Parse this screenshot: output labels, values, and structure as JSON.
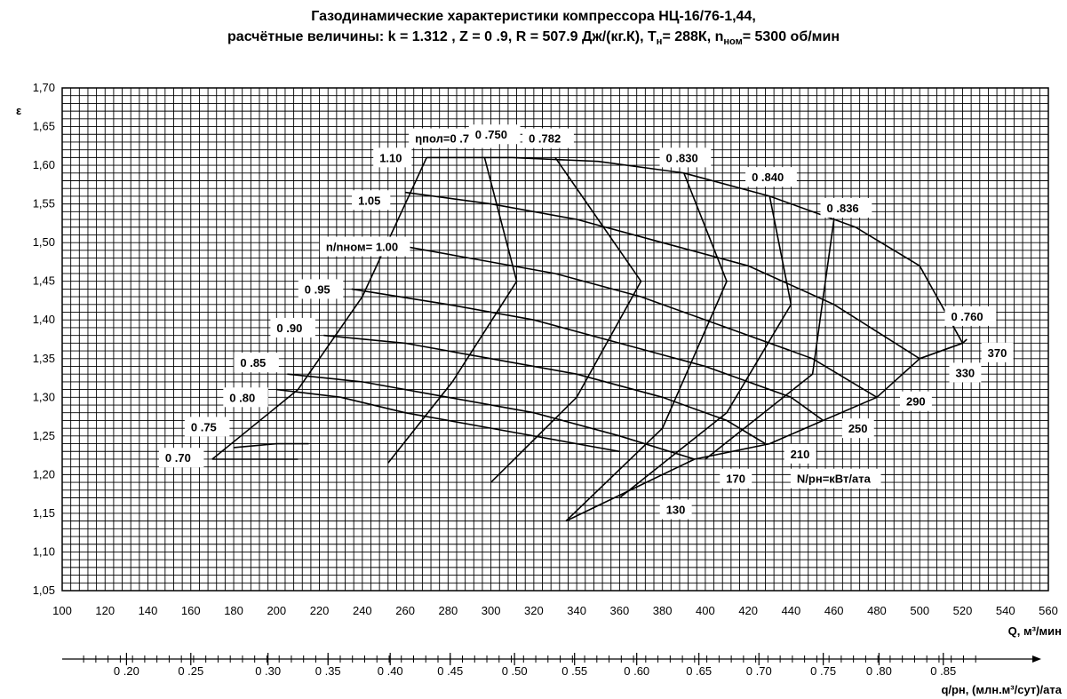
{
  "title": {
    "line1": "Газодинамические характеристики компрессора НЦ-16/76-1,44,",
    "line2_a": "расчётные величины: k = 1.312 , Z = 0 .9, R = 507.9 Дж/(кг.К), T",
    "line2_sub1": "н",
    "line2_b": "= 288К, n",
    "line2_sub2": "ном",
    "line2_c": "= 5300 об/мин"
  },
  "chart_data": {
    "type": "line",
    "xlabel": "Q, м³/мин",
    "ylabel": "ε",
    "xlabel2": "q/pн, (млн.м³/сут)/ата",
    "xlim": [
      100,
      560
    ],
    "ylim": [
      1.05,
      1.7
    ],
    "x_ticks": [
      "100",
      "120",
      "140",
      "160",
      "180",
      "200",
      "220",
      "240",
      "260",
      "280",
      "300",
      "320",
      "340",
      "360",
      "380",
      "400",
      "420",
      "440",
      "460",
      "480",
      "500",
      "520",
      "540",
      "560"
    ],
    "y_ticks": [
      "1,05",
      "1,10",
      "1,15",
      "1,20",
      "1,25",
      "1,30",
      "1,35",
      "1,40",
      "1,45",
      "1,50",
      "1,55",
      "1,60",
      "1,65",
      "1,70"
    ],
    "x2_ticks": [
      {
        "label": "0 .20",
        "x": 130
      },
      {
        "label": "0 .25",
        "x": 160
      },
      {
        "label": "0 .30",
        "x": 196
      },
      {
        "label": "0 .35",
        "x": 224
      },
      {
        "label": "0 .40",
        "x": 253
      },
      {
        "label": "0 .45",
        "x": 281
      },
      {
        "label": "0 .50",
        "x": 311
      },
      {
        "label": "0 .55",
        "x": 339
      },
      {
        "label": "0 .60",
        "x": 368
      },
      {
        "label": "0 .65",
        "x": 397
      },
      {
        "label": "0 .70",
        "x": 425
      },
      {
        "label": "0 .75",
        "x": 455
      },
      {
        "label": "0 .80",
        "x": 481
      },
      {
        "label": "0 .85",
        "x": 511
      }
    ],
    "grid": true,
    "speed_lines": [
      {
        "label": "0 .70",
        "points": [
          [
            170,
            1.22
          ],
          [
            190,
            1.22
          ],
          [
            210,
            1.22
          ]
        ]
      },
      {
        "label": "0 .75",
        "points": [
          [
            180,
            1.235
          ],
          [
            200,
            1.24
          ],
          [
            215,
            1.24
          ]
        ]
      },
      {
        "label": "0 .80",
        "points": [
          [
            200,
            1.31
          ],
          [
            230,
            1.3
          ],
          [
            260,
            1.28
          ],
          [
            300,
            1.26
          ],
          [
            340,
            1.24
          ],
          [
            360,
            1.23
          ]
        ]
      },
      {
        "label": "0 .85",
        "points": [
          [
            205,
            1.33
          ],
          [
            240,
            1.32
          ],
          [
            280,
            1.3
          ],
          [
            320,
            1.28
          ],
          [
            360,
            1.25
          ],
          [
            395,
            1.22
          ]
        ]
      },
      {
        "label": "0 .90",
        "points": [
          [
            222,
            1.38
          ],
          [
            260,
            1.37
          ],
          [
            300,
            1.35
          ],
          [
            340,
            1.33
          ],
          [
            380,
            1.3
          ],
          [
            410,
            1.27
          ],
          [
            428,
            1.24
          ]
        ]
      },
      {
        "label": "0 .95",
        "points": [
          [
            235,
            1.44
          ],
          [
            280,
            1.42
          ],
          [
            320,
            1.4
          ],
          [
            360,
            1.37
          ],
          [
            400,
            1.34
          ],
          [
            440,
            1.3
          ],
          [
            455,
            1.27
          ]
        ]
      },
      {
        "label": "n/nном= 1.00",
        "points": [
          [
            250,
            1.5
          ],
          [
            290,
            1.48
          ],
          [
            330,
            1.46
          ],
          [
            370,
            1.43
          ],
          [
            410,
            1.39
          ],
          [
            450,
            1.35
          ],
          [
            480,
            1.3
          ]
        ]
      },
      {
        "label": "1.05",
        "points": [
          [
            260,
            1.565
          ],
          [
            300,
            1.55
          ],
          [
            340,
            1.53
          ],
          [
            380,
            1.5
          ],
          [
            420,
            1.47
          ],
          [
            460,
            1.42
          ],
          [
            500,
            1.35
          ]
        ]
      },
      {
        "label": "1.10",
        "points": [
          [
            270,
            1.61
          ],
          [
            310,
            1.61
          ],
          [
            350,
            1.605
          ],
          [
            390,
            1.59
          ],
          [
            430,
            1.56
          ],
          [
            470,
            1.52
          ],
          [
            500,
            1.47
          ],
          [
            520,
            1.37
          ]
        ]
      }
    ],
    "efficiency_lines": [
      {
        "label": "ηпол=0 .725",
        "points": [
          [
            170,
            1.22
          ],
          [
            210,
            1.31
          ],
          [
            240,
            1.43
          ],
          [
            270,
            1.61
          ]
        ]
      },
      {
        "label": "0 .750",
        "points": [
          [
            252,
            1.215
          ],
          [
            282,
            1.32
          ],
          [
            312,
            1.45
          ],
          [
            297,
            1.61
          ]
        ]
      },
      {
        "label": "0 .782",
        "points": [
          [
            300,
            1.19
          ],
          [
            340,
            1.3
          ],
          [
            370,
            1.45
          ],
          [
            330,
            1.61
          ]
        ]
      },
      {
        "label": "0 .830",
        "points": [
          [
            335,
            1.14
          ],
          [
            380,
            1.26
          ],
          [
            410,
            1.45
          ],
          [
            390,
            1.59
          ]
        ]
      },
      {
        "label": "0 .840",
        "points": [
          [
            360,
            1.17
          ],
          [
            410,
            1.28
          ],
          [
            440,
            1.42
          ],
          [
            430,
            1.56
          ]
        ]
      },
      {
        "label": "0 .836",
        "points": [
          [
            400,
            1.22
          ],
          [
            450,
            1.33
          ],
          [
            460,
            1.53
          ]
        ]
      },
      {
        "label": "0 .760",
        "points": [
          [
            500,
            1.35
          ],
          [
            520,
            1.37
          ]
        ]
      }
    ],
    "power_lines": [
      {
        "label": "130",
        "points": [
          [
            335,
            1.14
          ],
          [
            395,
            1.22
          ]
        ]
      },
      {
        "label": "170",
        "points": [
          [
            395,
            1.22
          ],
          [
            430,
            1.24
          ]
        ]
      },
      {
        "label": "210",
        "points": [
          [
            430,
            1.24
          ],
          [
            455,
            1.27
          ]
        ]
      },
      {
        "label": "250",
        "points": [
          [
            455,
            1.27
          ],
          [
            480,
            1.3
          ]
        ]
      },
      {
        "label": "290",
        "points": [
          [
            480,
            1.3
          ],
          [
            500,
            1.35
          ]
        ]
      },
      {
        "label": "330",
        "points": [
          [
            500,
            1.35
          ],
          [
            520,
            1.37
          ]
        ]
      },
      {
        "label": "370",
        "points": [
          [
            520,
            1.37
          ],
          [
            522,
            1.375
          ]
        ]
      }
    ],
    "power_legend": "N/pн=кВт/ата",
    "speed_line_labels": [
      {
        "label": "0 .70",
        "x": 170,
        "y": 1.222
      },
      {
        "label": "0 .75",
        "x": 182,
        "y": 1.262
      },
      {
        "label": "0 .80",
        "x": 200,
        "y": 1.3
      },
      {
        "label": "0 .85",
        "x": 205,
        "y": 1.345
      },
      {
        "label": "0 .90",
        "x": 222,
        "y": 1.39
      },
      {
        "label": "0 .95",
        "x": 235,
        "y": 1.44
      },
      {
        "label": "n/nном= 1.00",
        "x": 245,
        "y": 1.495
      },
      {
        "label": "1.05",
        "x": 260,
        "y": 1.555
      },
      {
        "label": "1.10",
        "x": 270,
        "y": 1.61
      }
    ],
    "efficiency_labels": [
      {
        "label": "ηпол=0 .725",
        "x": 270,
        "y": 1.635
      },
      {
        "label": "0 .750",
        "x": 298,
        "y": 1.64
      },
      {
        "label": "0 .782",
        "x": 323,
        "y": 1.635
      },
      {
        "label": "0 .830",
        "x": 387,
        "y": 1.61
      },
      {
        "label": "0 .840",
        "x": 427,
        "y": 1.585
      },
      {
        "label": "0 .836",
        "x": 462,
        "y": 1.545
      },
      {
        "label": "0 .760",
        "x": 520,
        "y": 1.405
      }
    ],
    "power_labels": [
      {
        "label": "130",
        "x": 385,
        "y": 1.155
      },
      {
        "label": "170",
        "x": 413,
        "y": 1.195
      },
      {
        "label": "210",
        "x": 443,
        "y": 1.227
      },
      {
        "label": "250",
        "x": 470,
        "y": 1.26
      },
      {
        "label": "290",
        "x": 497,
        "y": 1.295
      },
      {
        "label": "330",
        "x": 520,
        "y": 1.332
      },
      {
        "label": "370",
        "x": 535,
        "y": 1.358
      }
    ]
  }
}
